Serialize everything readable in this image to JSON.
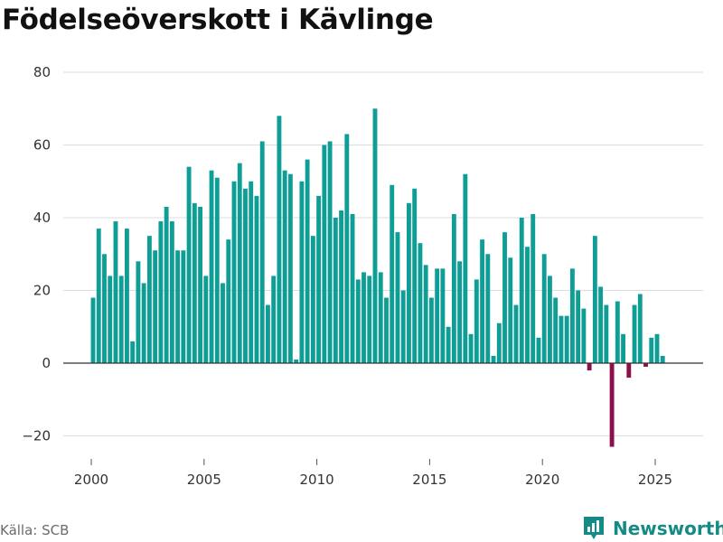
{
  "chart_data": {
    "type": "bar",
    "title": "Födelseöverskott i Kävlinge",
    "xlabel": "",
    "ylabel": "",
    "ylim": [
      -28,
      80
    ],
    "yticks": [
      -20,
      0,
      20,
      40,
      60,
      80
    ],
    "ytick_labels": [
      "−20",
      "0",
      "20",
      "40",
      "60",
      "80"
    ],
    "xticks": [
      2000,
      2005,
      2010,
      2015,
      2020,
      2025
    ],
    "xtick_labels": [
      "2000",
      "2005",
      "2010",
      "2015",
      "2020",
      "2025"
    ],
    "xlim": [
      1999.0,
      2027.0
    ],
    "period": "quarterly",
    "start": 2000.0,
    "values": [
      18,
      37,
      30,
      24,
      39,
      24,
      37,
      6,
      28,
      22,
      35,
      31,
      39,
      43,
      39,
      31,
      31,
      54,
      44,
      43,
      24,
      53,
      51,
      22,
      34,
      50,
      55,
      48,
      50,
      46,
      61,
      16,
      24,
      68,
      53,
      52,
      1,
      50,
      56,
      35,
      46,
      60,
      61,
      40,
      42,
      63,
      41,
      23,
      25,
      24,
      70,
      25,
      18,
      49,
      36,
      20,
      44,
      48,
      33,
      27,
      18,
      26,
      26,
      10,
      41,
      28,
      52,
      8,
      23,
      34,
      30,
      2,
      11,
      36,
      29,
      16,
      40,
      32,
      41,
      7,
      30,
      24,
      18,
      13,
      13,
      26,
      20,
      15,
      -2,
      35,
      21,
      16,
      -23,
      17,
      8,
      -4,
      16,
      19,
      -1,
      7,
      8,
      2
    ],
    "colors": {
      "positive": "#0f9e96",
      "negative": "#8c0f4a",
      "grid": "#dddddd",
      "zero_line": "#333333"
    }
  },
  "footer": {
    "source": "Källa: SCB",
    "brand": "Newsworthy",
    "brand_color": "#148c85"
  },
  "icons": {
    "brand_logo": "newsworthy-logo-icon"
  }
}
